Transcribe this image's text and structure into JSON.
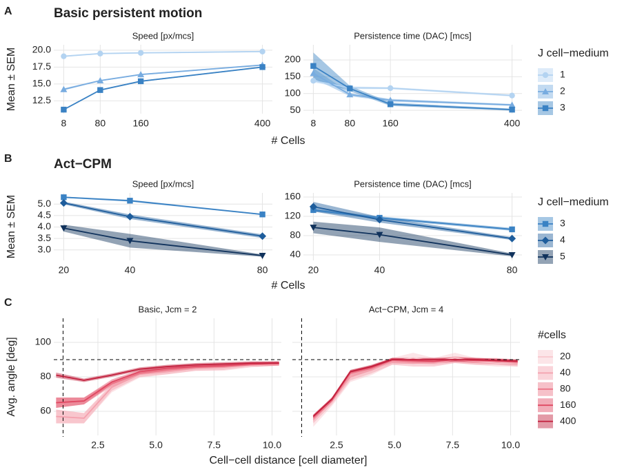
{
  "panels": [
    {
      "label": "A",
      "title": "Basic persistent motion",
      "y_label": "Mean ± SEM",
      "x_label": "# Cells",
      "legend_title": "J cell−medium"
    },
    {
      "label": "B",
      "title": "Act−CPM",
      "y_label": "Mean ± SEM",
      "x_label": "# Cells",
      "legend_title": "J cell−medium"
    },
    {
      "label": "C",
      "y_label": "Avg. angle [deg]",
      "x_label": "Cell−cell distance [cell diameter]",
      "legend_title": "#cells"
    }
  ],
  "chart_data": [
    {
      "type": "line",
      "title": "Speed [px/mcs]",
      "x": [
        8,
        80,
        160,
        400
      ],
      "xlim": [
        -11.6,
        419.6
      ],
      "xticks": [
        8,
        80,
        160,
        400
      ],
      "ylim": [
        10.6,
        20.8
      ],
      "yticks": [
        12.5,
        {
          "value": 15,
          "label": "15.0"
        },
        17.5,
        {
          "value": 20,
          "label": "20.0"
        }
      ],
      "series": [
        {
          "name": "1",
          "color": "#b3d3f1",
          "marker": "circle",
          "values": [
            19.1,
            19.5,
            19.6,
            19.8
          ],
          "errors": [
            0.1,
            0.1,
            0.1,
            0.1
          ]
        },
        {
          "name": "2",
          "color": "#78ace0",
          "marker": "triangle",
          "values": [
            14.2,
            15.5,
            16.4,
            17.8
          ],
          "errors": [
            0.15,
            0.1,
            0.1,
            0.1
          ]
        },
        {
          "name": "3",
          "color": "#3a82c4",
          "marker": "square",
          "values": [
            11.2,
            14.1,
            15.4,
            17.5
          ],
          "errors": [
            0.1,
            0.1,
            0.1,
            0.1
          ]
        }
      ]
    },
    {
      "type": "line",
      "title": "Persistence time (DAC) [mcs]",
      "x": [
        8,
        80,
        160,
        400
      ],
      "xlim": [
        -11.6,
        419.6
      ],
      "xticks": [
        8,
        80,
        160,
        400
      ],
      "ylim": [
        40,
        245
      ],
      "yticks": [
        50,
        100,
        150,
        200
      ],
      "series": [
        {
          "name": "1",
          "color": "#b3d3f1",
          "marker": "circle",
          "values": [
            138,
            117,
            116,
            94
          ],
          "errors": [
            5,
            4,
            3,
            3
          ]
        },
        {
          "name": "2",
          "color": "#78ace0",
          "marker": "triangle",
          "values": [
            160,
            97,
            80,
            66
          ],
          "errors": [
            15,
            5,
            4,
            3
          ]
        },
        {
          "name": "3",
          "color": "#3a82c4",
          "marker": "square",
          "values": [
            182,
            115,
            68,
            52
          ],
          "errors": [
            40,
            8,
            5,
            3
          ]
        }
      ]
    },
    {
      "type": "line",
      "title": "Speed [px/mcs]",
      "x": [
        20,
        40,
        80
      ],
      "xlim": [
        17,
        83
      ],
      "xticks": [
        20,
        40,
        80
      ],
      "ylim": [
        2.54,
        5.49
      ],
      "yticks": [
        {
          "value": 3,
          "label": "3.0"
        },
        3.5,
        {
          "value": 4,
          "label": "4.0"
        },
        4.5,
        {
          "value": 5,
          "label": "5.0"
        }
      ],
      "series": [
        {
          "name": "3",
          "color": "#3a82c4",
          "marker": "square",
          "values": [
            5.3,
            5.15,
            4.55
          ],
          "errors": [
            0.03,
            0.04,
            0.03
          ]
        },
        {
          "name": "4",
          "color": "#1e5d9c",
          "marker": "diamond",
          "values": [
            5.05,
            4.45,
            3.6
          ],
          "errors": [
            0.06,
            0.1,
            0.08
          ]
        },
        {
          "name": "5",
          "color": "#10325c",
          "marker": "triangle-down",
          "values": [
            3.95,
            3.4,
            2.75
          ],
          "errors": [
            0.15,
            0.3,
            0.05
          ]
        }
      ]
    },
    {
      "type": "line",
      "title": "Persistence time (DAC) [mcs]",
      "x": [
        20,
        40,
        80
      ],
      "xlim": [
        17,
        83
      ],
      "xticks": [
        20,
        40,
        80
      ],
      "ylim": [
        28.6,
        168.6
      ],
      "yticks": [
        40,
        80,
        120,
        160
      ],
      "series": [
        {
          "name": "3",
          "color": "#3a82c4",
          "marker": "square",
          "values": [
            133,
            117,
            93
          ],
          "errors": [
            3,
            3,
            3
          ]
        },
        {
          "name": "4",
          "color": "#1e5d9c",
          "marker": "diamond",
          "values": [
            140,
            113,
            74
          ],
          "errors": [
            10,
            6,
            3
          ]
        },
        {
          "name": "5",
          "color": "#10325c",
          "marker": "triangle-down",
          "values": [
            97,
            82,
            40
          ],
          "errors": [
            12,
            15,
            3
          ]
        }
      ]
    },
    {
      "type": "line",
      "title": "Basic, Jcm = 2",
      "x": [
        0.7,
        1.9,
        3.1,
        4.3,
        5.5,
        6.7,
        7.9,
        9.1,
        10.3
      ],
      "xlim": [
        0.6,
        10.4
      ],
      "xticks": [
        2.5,
        {
          "value": 5,
          "label": "5.0"
        },
        7.5,
        {
          "value": 10,
          "label": "10.0"
        }
      ],
      "ylim": [
        46,
        114
      ],
      "yticks": [
        60,
        80,
        100
      ],
      "hline": 90,
      "vline": 1,
      "series": [
        {
          "name": "20",
          "color": "#f9c6cd",
          "values": [
            57,
            56,
            73,
            81,
            83,
            85,
            85,
            86.5,
            87.5
          ],
          "errors": [
            4,
            3,
            2,
            1.5,
            1.5,
            1.5,
            1.5,
            1,
            1
          ]
        },
        {
          "name": "40",
          "color": "#f4a0ad",
          "values": [
            57,
            56,
            74,
            81.5,
            83,
            85,
            85.5,
            87,
            87.5
          ],
          "errors": [
            4,
            3,
            2,
            1.5,
            1.5,
            1.5,
            1.5,
            1,
            1
          ]
        },
        {
          "name": "80",
          "color": "#ec7587",
          "values": [
            65,
            66,
            76,
            82,
            84,
            85.5,
            86,
            87,
            87.5
          ],
          "errors": [
            3,
            2,
            1.5,
            1,
            1,
            1,
            1,
            1,
            1
          ]
        },
        {
          "name": "160",
          "color": "#df4862",
          "values": [
            65,
            66,
            77,
            83,
            85,
            86,
            86.5,
            87.5,
            88
          ],
          "errors": [
            3,
            2,
            1.5,
            1,
            1,
            1,
            1,
            1,
            1
          ]
        },
        {
          "name": "400",
          "color": "#c21f3c",
          "values": [
            81,
            78,
            81,
            84.5,
            86,
            87,
            87.5,
            88,
            88
          ],
          "errors": [
            1.5,
            1,
            1,
            1,
            1,
            1,
            1,
            1,
            1
          ]
        }
      ]
    },
    {
      "type": "line",
      "title": "Act−CPM, Jcm = 4",
      "x": [
        1.5,
        2.3,
        3.1,
        4,
        4.9,
        5.8,
        6.7,
        7.6,
        8.5,
        9.4,
        10.3
      ],
      "xlim": [
        0.6,
        10.4
      ],
      "xticks": [
        2.5,
        {
          "value": 5,
          "label": "5.0"
        },
        7.5,
        {
          "value": 10,
          "label": "10.0"
        }
      ],
      "ylim": [
        46,
        114
      ],
      "yticks": [
        60,
        80,
        100
      ],
      "show_ytick_labels": false,
      "hline": 90,
      "vline": 1,
      "series": [
        {
          "name": "20",
          "color": "#f9c6cd",
          "values": [
            54,
            65,
            79,
            83,
            89,
            91,
            89,
            91,
            89,
            88,
            88
          ],
          "errors": [
            3,
            2,
            2,
            2,
            2,
            3,
            2,
            3,
            2,
            2,
            2
          ]
        },
        {
          "name": "40",
          "color": "#f4a0ad",
          "values": [
            55,
            66,
            80,
            84,
            89,
            88,
            88,
            90,
            89,
            89,
            88
          ],
          "errors": [
            2,
            2,
            2,
            2,
            2,
            2,
            2,
            2,
            2,
            2,
            2
          ]
        },
        {
          "name": "80",
          "color": "#ec7587",
          "values": [
            56,
            66,
            82,
            85,
            89.5,
            89,
            89.5,
            90,
            89.5,
            89,
            88.5
          ],
          "errors": [
            2,
            1.5,
            1.5,
            1.5,
            1.5,
            1.5,
            1.5,
            1.5,
            1.5,
            1.5,
            1.5
          ]
        },
        {
          "name": "160",
          "color": "#df4862",
          "values": [
            57,
            67,
            83,
            85.5,
            90,
            89.5,
            89,
            90,
            89.5,
            89.5,
            89
          ],
          "errors": [
            1,
            1,
            1,
            1,
            1,
            1,
            1,
            1,
            1,
            1,
            1
          ]
        },
        {
          "name": "400",
          "color": "#c21f3c",
          "values": [
            57,
            67,
            83,
            86,
            90,
            90,
            90,
            90,
            90,
            89.5,
            89
          ],
          "errors": [
            1,
            1,
            1,
            1,
            1,
            1,
            1,
            1,
            1,
            1,
            1
          ]
        }
      ]
    }
  ]
}
